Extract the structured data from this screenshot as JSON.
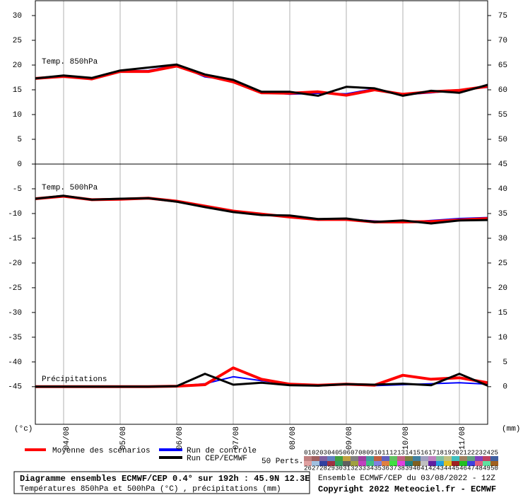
{
  "chart_data": [
    {
      "type": "line",
      "label": "Temp. 850hPa",
      "x": [
        12,
        24,
        36,
        48,
        60,
        72,
        84,
        96,
        108,
        120,
        132,
        144,
        156,
        168,
        180,
        192,
        204
      ],
      "xlim": [
        12,
        204
      ],
      "xticks": [
        {
          "value": 24,
          "label": "04/08"
        },
        {
          "value": 48,
          "label": "05/08"
        },
        {
          "value": 72,
          "label": "06/08"
        },
        {
          "value": 96,
          "label": "07/08"
        },
        {
          "value": 120,
          "label": "08/08"
        },
        {
          "value": 144,
          "label": "09/08"
        },
        {
          "value": 168,
          "label": "10/08"
        },
        {
          "value": 192,
          "label": "11/08"
        }
      ],
      "ylim": [
        0,
        33
      ],
      "yticks": [
        0,
        5,
        10,
        15,
        20,
        25,
        30
      ],
      "y2lim": [
        45,
        78
      ],
      "y2ticks": [
        50,
        55,
        60,
        65,
        70,
        75
      ],
      "grid": true,
      "series": [
        {
          "name": "Run de contrôle",
          "color": "#0000ff",
          "values": [
            17.3,
            17.6,
            17.3,
            18.8,
            18.9,
            20.0,
            17.6,
            16.9,
            14.6,
            14.1,
            14.3,
            14.2,
            15.2,
            14.0,
            14.4,
            15.0,
            15.5
          ]
        },
        {
          "name": "Moyenne des scénarios",
          "color": "#ff0000",
          "values": [
            17.3,
            17.7,
            17.2,
            18.7,
            18.7,
            19.8,
            17.9,
            16.6,
            14.4,
            14.3,
            14.6,
            13.9,
            15.0,
            14.1,
            14.6,
            14.9,
            15.7
          ]
        },
        {
          "name": "Run CEP/ECMWF",
          "color": "#000000",
          "values": [
            17.3,
            17.9,
            17.4,
            18.9,
            19.5,
            20.1,
            18.1,
            17.0,
            14.6,
            14.6,
            13.8,
            15.6,
            15.3,
            13.8,
            14.8,
            14.4,
            16.0
          ]
        }
      ]
    },
    {
      "type": "line",
      "label": "Temp. 500hPa",
      "label2": "Précipitations",
      "unit_left": "(°c)",
      "unit_right": "(mm)",
      "x": [
        12,
        24,
        36,
        48,
        60,
        72,
        84,
        96,
        108,
        120,
        132,
        144,
        156,
        168,
        180,
        192,
        204
      ],
      "xlim": [
        12,
        204
      ],
      "xticks": [
        {
          "value": 24,
          "label": "04/08"
        },
        {
          "value": 48,
          "label": "05/08"
        },
        {
          "value": 72,
          "label": "06/08"
        },
        {
          "value": 96,
          "label": "07/08"
        },
        {
          "value": 120,
          "label": "08/08"
        },
        {
          "value": 144,
          "label": "09/08"
        },
        {
          "value": 168,
          "label": "10/08"
        },
        {
          "value": 192,
          "label": "11/08"
        }
      ],
      "ylim": [
        -52.6,
        0
      ],
      "yticks": [
        -45,
        -40,
        -35,
        -30,
        -25,
        -20,
        -15,
        -10,
        -5
      ],
      "y2lim": [
        -7.6,
        45
      ],
      "y2ticks": [
        0,
        5,
        10,
        15,
        20,
        25,
        30,
        35,
        40,
        45
      ],
      "grid": true,
      "series": [
        {
          "name": "Run de contrôle",
          "color": "#0000ff",
          "values": [
            -7.0,
            -6.5,
            -7.1,
            -7.0,
            -7.0,
            -7.6,
            -8.6,
            -9.6,
            -10.2,
            -10.6,
            -11.3,
            -11.1,
            -11.5,
            -11.8,
            -11.4,
            -11.0,
            -10.8
          ]
        },
        {
          "name": "Moyenne des scénarios",
          "color": "#ff0000",
          "values": [
            -7.0,
            -6.5,
            -7.2,
            -7.1,
            -6.9,
            -7.5,
            -8.5,
            -9.5,
            -10.1,
            -10.7,
            -11.2,
            -11.2,
            -11.7,
            -11.7,
            -11.6,
            -11.3,
            -11.0
          ]
        },
        {
          "name": "Run CEP/ECMWF",
          "color": "#000000",
          "values": [
            -7.0,
            -6.4,
            -7.2,
            -7.0,
            -6.9,
            -7.6,
            -8.7,
            -9.7,
            -10.3,
            -10.4,
            -11.1,
            -11.0,
            -11.7,
            -11.4,
            -12.0,
            -11.4,
            -11.3
          ]
        },
        {
          "name": "Run de contrôle",
          "color": "#0000ff",
          "axis": "y2",
          "values": [
            0,
            0,
            0,
            0,
            0,
            0.1,
            0.6,
            2.0,
            1.2,
            0.6,
            0.2,
            0.4,
            0.2,
            0.4,
            0.6,
            0.8,
            0.5
          ]
        },
        {
          "name": "Moyenne des scénarios",
          "color": "#ff0000",
          "axis": "y2",
          "values": [
            0,
            0,
            0,
            0,
            0,
            0.1,
            0.4,
            3.8,
            1.5,
            0.5,
            0.3,
            0.5,
            0.3,
            2.3,
            1.5,
            1.8,
            0.8
          ]
        },
        {
          "name": "Run CEP/ECMWF",
          "color": "#000000",
          "axis": "y2",
          "values": [
            0,
            0,
            0,
            0,
            0,
            0.1,
            2.6,
            0.4,
            0.8,
            0.3,
            0.2,
            0.5,
            0.4,
            0.6,
            0.3,
            2.6,
            0.2
          ]
        }
      ]
    }
  ],
  "footer": {
    "box_title": "Diagramme ensembles ECMWF/CEP 0.4° sur 192h : 45.9N 12.3E",
    "box_subtitle": "Températures 850hPa et 500hPa (°C) , précipitations (mm)",
    "perts_label": "50 Perts.",
    "run": "Ensemble ECMWF/CEP du 03/08/2022 - 12Z",
    "copyright": "Copyright 2022 Meteociel.fr - ECMWF",
    "members": [
      {
        "label": "01",
        "color": "#c08080"
      },
      {
        "label": "02",
        "color": "#a06060"
      },
      {
        "label": "03",
        "color": "#8060a0"
      },
      {
        "label": "04",
        "color": "#6080c0"
      },
      {
        "label": "05",
        "color": "#40a040"
      },
      {
        "label": "06",
        "color": "#c0a040"
      },
      {
        "label": "07",
        "color": "#808080"
      },
      {
        "label": "08",
        "color": "#a040a0"
      },
      {
        "label": "09",
        "color": "#40a0a0"
      },
      {
        "label": "10",
        "color": "#c06040"
      },
      {
        "label": "11",
        "color": "#6060c0"
      },
      {
        "label": "12",
        "color": "#60c060"
      },
      {
        "label": "13",
        "color": "#c06080"
      },
      {
        "label": "14",
        "color": "#808040"
      },
      {
        "label": "15",
        "color": "#4080a0"
      },
      {
        "label": "16",
        "color": "#a0a0c0"
      },
      {
        "label": "17",
        "color": "#c080c0"
      },
      {
        "label": "18",
        "color": "#80c0a0"
      },
      {
        "label": "19",
        "color": "#c0c080"
      },
      {
        "label": "20",
        "color": "#40c0c0"
      },
      {
        "label": "21",
        "color": "#a08060"
      },
      {
        "label": "22",
        "color": "#60a080"
      },
      {
        "label": "23",
        "color": "#8040c0"
      },
      {
        "label": "24",
        "color": "#c04060"
      },
      {
        "label": "25",
        "color": "#4060a0"
      },
      {
        "label": "26",
        "color": "#e0a0a0"
      },
      {
        "label": "27",
        "color": "#a0c0e0"
      },
      {
        "label": "28",
        "color": "#3040a0"
      },
      {
        "label": "29",
        "color": "#a03040"
      },
      {
        "label": "30",
        "color": "#30a060"
      },
      {
        "label": "31",
        "color": "#606060"
      },
      {
        "label": "32",
        "color": "#a0a040"
      },
      {
        "label": "33",
        "color": "#c040c0"
      },
      {
        "label": "34",
        "color": "#40c080"
      },
      {
        "label": "35",
        "color": "#8080e0"
      },
      {
        "label": "36",
        "color": "#e08040"
      },
      {
        "label": "37",
        "color": "#40e040"
      },
      {
        "label": "38",
        "color": "#e040e0"
      },
      {
        "label": "39",
        "color": "#208080"
      },
      {
        "label": "40",
        "color": "#806020"
      },
      {
        "label": "41",
        "color": "#c0c0c0"
      },
      {
        "label": "42",
        "color": "#6020a0"
      },
      {
        "label": "43",
        "color": "#20a0e0"
      },
      {
        "label": "44",
        "color": "#e0c020"
      },
      {
        "label": "45",
        "color": "#a02020"
      },
      {
        "label": "46",
        "color": "#20c020"
      },
      {
        "label": "47",
        "color": "#4040e0"
      },
      {
        "label": "48",
        "color": "#e06080"
      },
      {
        "label": "49",
        "color": "#60e0a0"
      },
      {
        "label": "50",
        "color": "#a06020"
      }
    ]
  }
}
